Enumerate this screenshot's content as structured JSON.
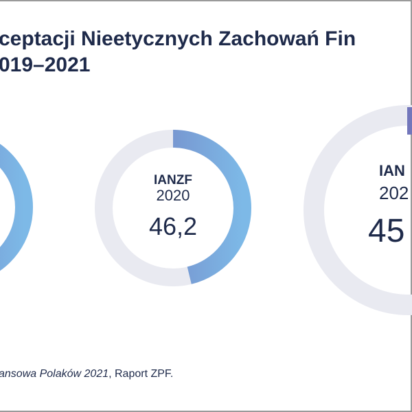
{
  "colors": {
    "track": "#e9eaf1",
    "grad_start": "#7276bb",
    "grad_end": "#7db9e7",
    "text": "#1e2a4a"
  },
  "title": {
    "line1": "ceptacji Nieetycznych Zachowań Fin",
    "line2": "019–2021"
  },
  "source": {
    "italic": "ansowa Polaków 2021",
    "rest": ", Raport ZPF."
  },
  "chart_data": {
    "type": "donut",
    "title": "ceptacji Nieetycznych Zachowań Fin 019–2021",
    "max": 100,
    "series": [
      {
        "label": "",
        "year": "",
        "value": null,
        "value_label": ""
      },
      {
        "label": "IANZF",
        "year": "2020",
        "value": 46.2,
        "value_label": "46,2"
      },
      {
        "label": "IAN",
        "year": "202",
        "value": null,
        "value_label": "45"
      }
    ]
  }
}
